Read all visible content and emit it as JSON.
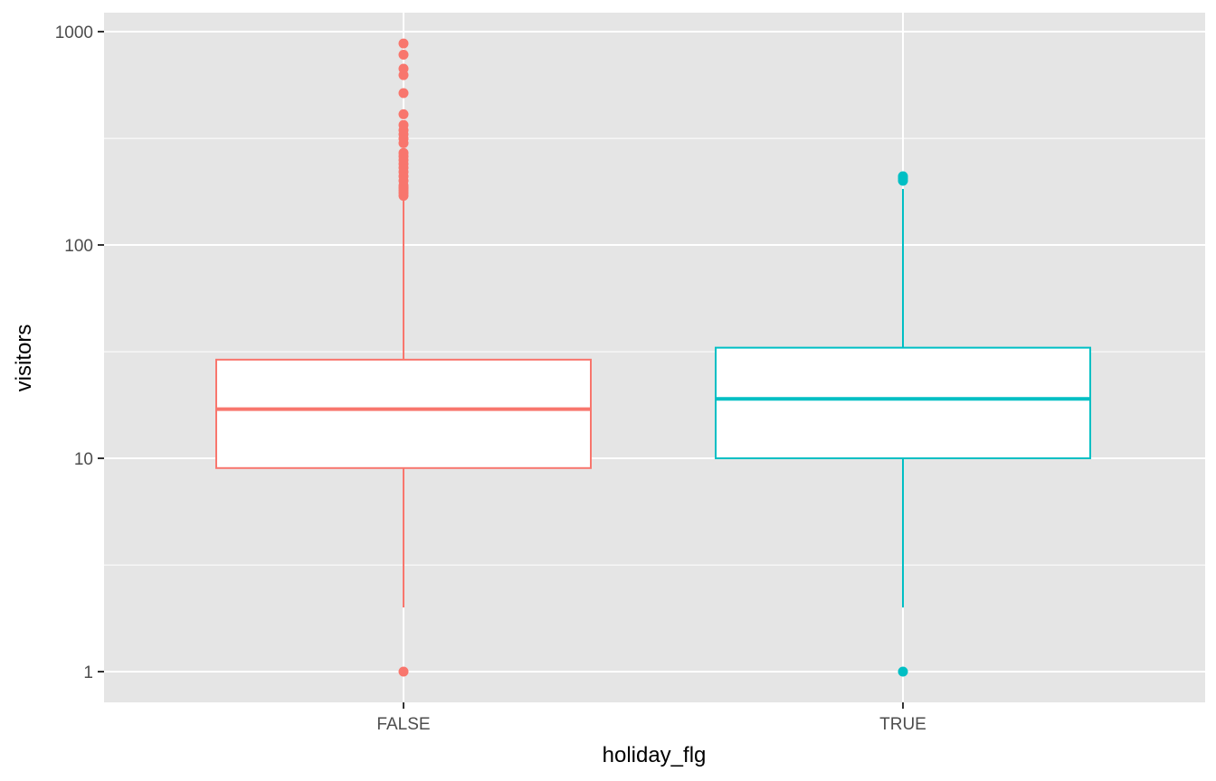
{
  "chart_data": {
    "type": "box",
    "title": "",
    "xlabel": "holiday_flg",
    "ylabel": "visitors",
    "y_scale": "log10",
    "ylim": [
      0.77,
      1300
    ],
    "y_ticks": [
      {
        "value": 1,
        "label": "1"
      },
      {
        "value": 10,
        "label": "10"
      },
      {
        "value": 100,
        "label": "100"
      },
      {
        "value": 1000,
        "label": "1000"
      }
    ],
    "y_minor_ticks": [
      3.16,
      31.6,
      316
    ],
    "grid": true,
    "legend": "none",
    "background_color": "#e5e5e5",
    "grid_color": "#ffffff",
    "categories": [
      "FALSE",
      "TRUE"
    ],
    "series": [
      {
        "category": "FALSE",
        "color": "#f8766d",
        "whisker_low": 2,
        "q1": 9,
        "median": 17,
        "q3": 29,
        "whisker_high": 168,
        "outliers": [
          1,
          170,
          175,
          180,
          185,
          190,
          200,
          210,
          220,
          230,
          240,
          250,
          260,
          270,
          300,
          315,
          330,
          345,
          365,
          410,
          515,
          625,
          670,
          780,
          880
        ]
      },
      {
        "category": "TRUE",
        "color": "#00bfc4",
        "whisker_low": 2,
        "q1": 10,
        "median": 19,
        "q3": 33,
        "whisker_high": 183,
        "outliers": [
          1,
          200,
          205,
          210
        ]
      }
    ]
  }
}
